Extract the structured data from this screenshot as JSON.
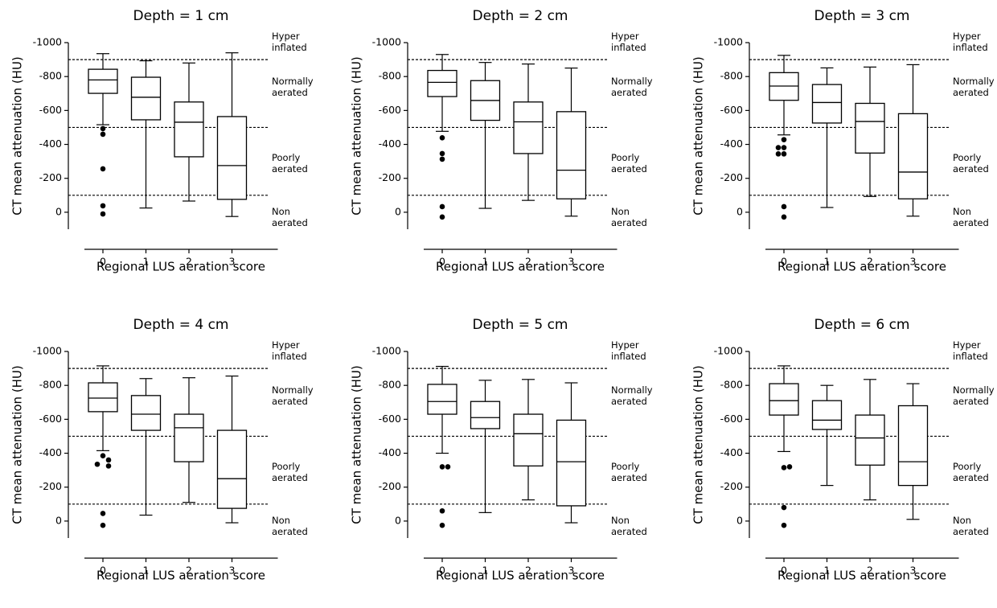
{
  "chart_data": [
    {
      "type": "box",
      "title": "Depth = 1 cm",
      "ylabel": "CT mean attenuation (HU)",
      "xlabel": "Regional LUS aeration score",
      "categories": [
        "0",
        "1",
        "2",
        "3"
      ],
      "ylim": [
        100,
        -1000
      ],
      "yticks": [
        -1000,
        -800,
        -600,
        -400,
        -200,
        0
      ],
      "hlines": [
        -900,
        -500,
        -100
      ],
      "zone_labels": [
        "Hyper inflated",
        "Normally aerated",
        "Poorly aerated",
        "Non aerated"
      ],
      "boxes": [
        {
          "min": -935,
          "q1": -843,
          "median": -780,
          "q3": -701,
          "max": -516,
          "outliers": [
            -493,
            -460,
            -256,
            -38,
            10
          ]
        },
        {
          "min": -893,
          "q1": -796,
          "median": -678,
          "q3": -545,
          "max": -25,
          "outliers": []
        },
        {
          "min": -880,
          "q1": -650,
          "median": -531,
          "q3": -327,
          "max": -66,
          "outliers": []
        },
        {
          "min": -940,
          "q1": -564,
          "median": -275,
          "q3": -76,
          "max": 25,
          "outliers": []
        }
      ]
    },
    {
      "type": "box",
      "title": "Depth = 2 cm",
      "ylabel": "CT mean attenuation (HU)",
      "xlabel": "Regional LUS aeration score",
      "categories": [
        "0",
        "1",
        "2",
        "3"
      ],
      "ylim": [
        100,
        -1000
      ],
      "yticks": [
        -1000,
        -800,
        -600,
        -400,
        -200,
        0
      ],
      "hlines": [
        -900,
        -500,
        -100
      ],
      "zone_labels": [
        "Hyper inflated",
        "Normally aerated",
        "Poorly aerated",
        "Non aerated"
      ],
      "boxes": [
        {
          "min": -930,
          "q1": -836,
          "median": -766,
          "q3": -682,
          "max": -477,
          "outliers": [
            -439,
            -346,
            -313,
            -33,
            28
          ]
        },
        {
          "min": -883,
          "q1": -776,
          "median": -659,
          "q3": -542,
          "max": -23,
          "outliers": []
        },
        {
          "min": -874,
          "q1": -650,
          "median": -533,
          "q3": -346,
          "max": -70,
          "outliers": []
        },
        {
          "min": -850,
          "q1": -593,
          "median": -248,
          "q3": -79,
          "max": 23,
          "outliers": []
        }
      ]
    },
    {
      "type": "box",
      "title": "Depth = 3 cm",
      "ylabel": "CT mean attenuation (HU)",
      "xlabel": "Regional LUS aeration score",
      "categories": [
        "0",
        "1",
        "2",
        "3"
      ],
      "ylim": [
        100,
        -1000
      ],
      "yticks": [
        -1000,
        -800,
        -600,
        -400,
        -200,
        0
      ],
      "hlines": [
        -900,
        -500,
        -100
      ],
      "zone_labels": [
        "Hyper inflated",
        "Normally aerated",
        "Poorly aerated",
        "Non aerated"
      ],
      "boxes": [
        {
          "min": -925,
          "q1": -823,
          "median": -744,
          "q3": -660,
          "max": -456,
          "outliers": [
            -428,
            -381,
            -381,
            -344,
            -344,
            -33,
            28
          ]
        },
        {
          "min": -851,
          "q1": -753,
          "median": -647,
          "q3": -526,
          "max": -28,
          "outliers": []
        },
        {
          "min": -856,
          "q1": -642,
          "median": -535,
          "q3": -349,
          "max": -93,
          "outliers": []
        },
        {
          "min": -870,
          "q1": -581,
          "median": -237,
          "q3": -79,
          "max": 23,
          "outliers": []
        }
      ]
    },
    {
      "type": "box",
      "title": "Depth = 4 cm",
      "ylabel": "CT mean attenuation (HU)",
      "xlabel": "Regional LUS aeration score",
      "categories": [
        "0",
        "1",
        "2",
        "3"
      ],
      "ylim": [
        100,
        -1000
      ],
      "yticks": [
        -1000,
        -800,
        -600,
        -400,
        -200,
        0
      ],
      "hlines": [
        -900,
        -500,
        -100
      ],
      "zone_labels": [
        "Hyper inflated",
        "Normally aerated",
        "Poorly aerated",
        "Non aerated"
      ],
      "boxes": [
        {
          "min": -915,
          "q1": -815,
          "median": -725,
          "q3": -645,
          "max": -415,
          "outliers": [
            -385,
            -360,
            -335,
            -325,
            -45,
            25
          ]
        },
        {
          "min": -840,
          "q1": -740,
          "median": -630,
          "q3": -535,
          "max": -35,
          "outliers": []
        },
        {
          "min": -845,
          "q1": -630,
          "median": -550,
          "q3": -350,
          "max": -110,
          "outliers": []
        },
        {
          "min": -855,
          "q1": -535,
          "median": -250,
          "q3": -75,
          "max": 10,
          "outliers": []
        }
      ]
    },
    {
      "type": "box",
      "title": "Depth = 5 cm",
      "ylabel": "CT mean attenuation (HU)",
      "xlabel": "Regional LUS aeration score",
      "categories": [
        "0",
        "1",
        "2",
        "3"
      ],
      "ylim": [
        100,
        -1000
      ],
      "yticks": [
        -1000,
        -800,
        -600,
        -400,
        -200,
        0
      ],
      "hlines": [
        -900,
        -500,
        -100
      ],
      "zone_labels": [
        "Hyper inflated",
        "Normally aerated",
        "Poorly aerated",
        "Non aerated"
      ],
      "boxes": [
        {
          "min": -912,
          "q1": -806,
          "median": -705,
          "q3": -630,
          "max": -400,
          "outliers": [
            -320,
            -320,
            -60,
            25
          ]
        },
        {
          "min": -830,
          "q1": -705,
          "median": -610,
          "q3": -545,
          "max": -50,
          "outliers": []
        },
        {
          "min": -835,
          "q1": -630,
          "median": -515,
          "q3": -325,
          "max": -125,
          "outliers": []
        },
        {
          "min": -815,
          "q1": -595,
          "median": -350,
          "q3": -90,
          "max": 10,
          "outliers": []
        }
      ]
    },
    {
      "type": "box",
      "title": "Depth = 6 cm",
      "ylabel": "CT mean attenuation (HU)",
      "xlabel": "Regional LUS aeration score",
      "categories": [
        "0",
        "1",
        "2",
        "3"
      ],
      "ylim": [
        100,
        -1000
      ],
      "yticks": [
        -1000,
        -800,
        -600,
        -400,
        -200,
        0
      ],
      "hlines": [
        -900,
        -500,
        -100
      ],
      "zone_labels": [
        "Hyper inflated",
        "Normally aerated",
        "Poorly aerated",
        "Non aerated"
      ],
      "boxes": [
        {
          "min": -915,
          "q1": -810,
          "median": -710,
          "q3": -625,
          "max": -410,
          "outliers": [
            -315,
            -320,
            -80,
            25
          ]
        },
        {
          "min": -800,
          "q1": -710,
          "median": -595,
          "q3": -540,
          "max": -210,
          "outliers": []
        },
        {
          "min": -835,
          "q1": -625,
          "median": -490,
          "q3": -330,
          "max": -125,
          "outliers": []
        },
        {
          "min": -810,
          "q1": -680,
          "median": -350,
          "q3": -210,
          "max": -10,
          "outliers": []
        }
      ]
    }
  ]
}
